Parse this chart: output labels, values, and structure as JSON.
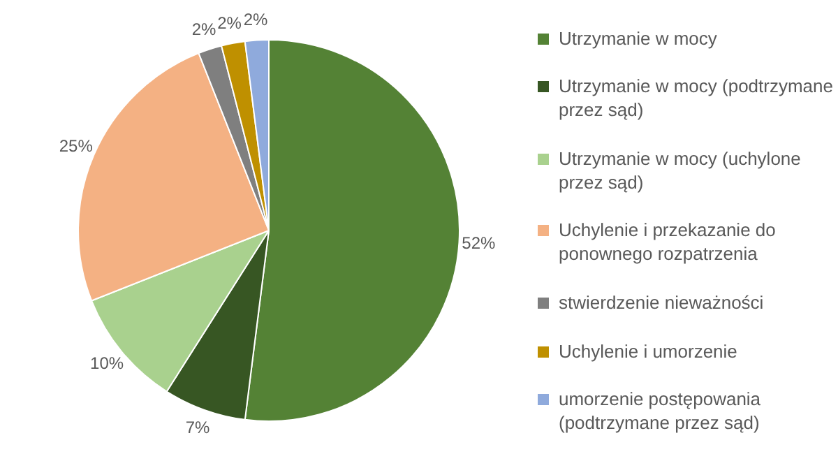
{
  "chart_data": {
    "type": "pie",
    "categories": [
      "Utrzymanie w mocy",
      "Utrzymanie w mocy (podtrzymane przez sąd)",
      "Utrzymanie w mocy (uchylone przez sąd)",
      "Uchylenie i przekazanie do ponownego rozpatrzenia",
      "stwierdzenie nieważności",
      "Uchylenie i umorzenie",
      "umorzenie postępowania (podtrzymane przez sąd)"
    ],
    "values": [
      52,
      7,
      10,
      25,
      2,
      2,
      2
    ],
    "colors": [
      "#548235",
      "#375623",
      "#a9d18e",
      "#f4b183",
      "#7f7f7f",
      "#bf9000",
      "#8faadc"
    ],
    "value_labels": [
      "52%",
      "7%",
      "10%",
      "25%",
      "2%",
      "2%",
      "2%"
    ],
    "legend": "right"
  }
}
